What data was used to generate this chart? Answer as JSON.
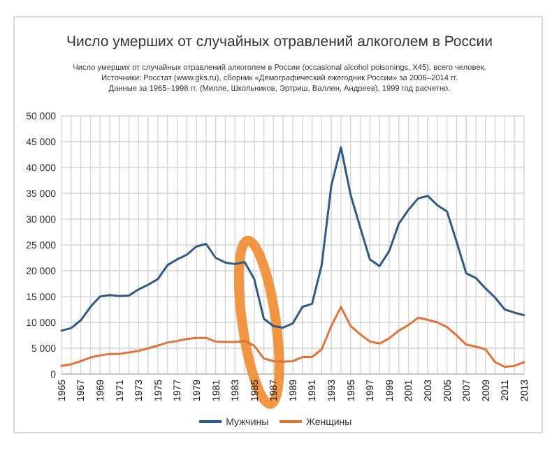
{
  "chart_data": {
    "type": "line",
    "title": "Число умерших от случайных отравлений алкоголем в России",
    "subtitle": "Число умерших от случайных отравлений алкоголем в России (occasional alcohol poisonings, X45), всего человек.",
    "annotations": [
      "Источники: Росстат (www.gks.ru), сборник «Демографический ежегодник России» за 2006–2014 гг.",
      "Данные за 1965–1998 гг. (Милле, Школьников, Эртриш, Валлен, Андреев), 1999 год расчетно."
    ],
    "categories": [
      "1965",
      null,
      "1967",
      null,
      "1969",
      null,
      "1971",
      null,
      "1973",
      null,
      "1975",
      null,
      "1977",
      null,
      "1979",
      null,
      "1981",
      null,
      "1983",
      null,
      "1985",
      null,
      "1987",
      null,
      "1989",
      null,
      "1991",
      null,
      "1993",
      null,
      "1995",
      null,
      "1997",
      null,
      "1999",
      null,
      "2001",
      null,
      "2003",
      null,
      "2005",
      null,
      "2007",
      null,
      "2009",
      null,
      "2011",
      null,
      "2013"
    ],
    "series": [
      {
        "name": "Мужчины",
        "color": "#2e5a88",
        "values": [
          8400,
          8900,
          10400,
          13000,
          15000,
          15300,
          15100,
          15200,
          16400,
          17300,
          18400,
          21100,
          22200,
          23100,
          24700,
          25200,
          22500,
          21600,
          21300,
          21700,
          18400,
          10700,
          9300,
          9000,
          9800,
          13000,
          13600,
          21100,
          36500,
          43900,
          34700,
          28400,
          22200,
          20900,
          23800,
          29100,
          31800,
          34000,
          34500,
          32700,
          31500,
          25600,
          19500,
          18600,
          16600,
          14800,
          12500,
          11900,
          11400
        ]
      },
      {
        "name": "Женщины",
        "color": "#e0733a",
        "values": [
          1600,
          1900,
          2500,
          3200,
          3600,
          3900,
          3900,
          4200,
          4500,
          5000,
          5500,
          6100,
          6400,
          6800,
          7000,
          7000,
          6300,
          6200,
          6200,
          6400,
          5500,
          3000,
          2500,
          2400,
          2500,
          3300,
          3300,
          4800,
          9300,
          13000,
          9300,
          7700,
          6300,
          5900,
          6900,
          8400,
          9500,
          10900,
          10500,
          10000,
          9100,
          7500,
          5700,
          5300,
          4800,
          2300,
          1400,
          1600,
          2300
        ]
      }
    ],
    "ylim": [
      0,
      50000
    ],
    "yticks": [
      0,
      {
        "value": 5000,
        "label": "5 000"
      },
      {
        "value": 10000,
        "label": "10 000"
      },
      {
        "value": 15000,
        "label": "15 000"
      },
      {
        "value": 20000,
        "label": "20 000"
      },
      {
        "value": 25000,
        "label": "25 000"
      },
      {
        "value": 30000,
        "label": "30 000"
      },
      {
        "value": 35000,
        "label": "35 000"
      },
      {
        "value": 40000,
        "label": "40 000"
      },
      {
        "value": 45000,
        "label": "45 000"
      },
      {
        "value": 50000,
        "label": "50 000"
      }
    ],
    "grid": true,
    "legend": "bottom",
    "line_style": "solid",
    "marker": "none"
  }
}
